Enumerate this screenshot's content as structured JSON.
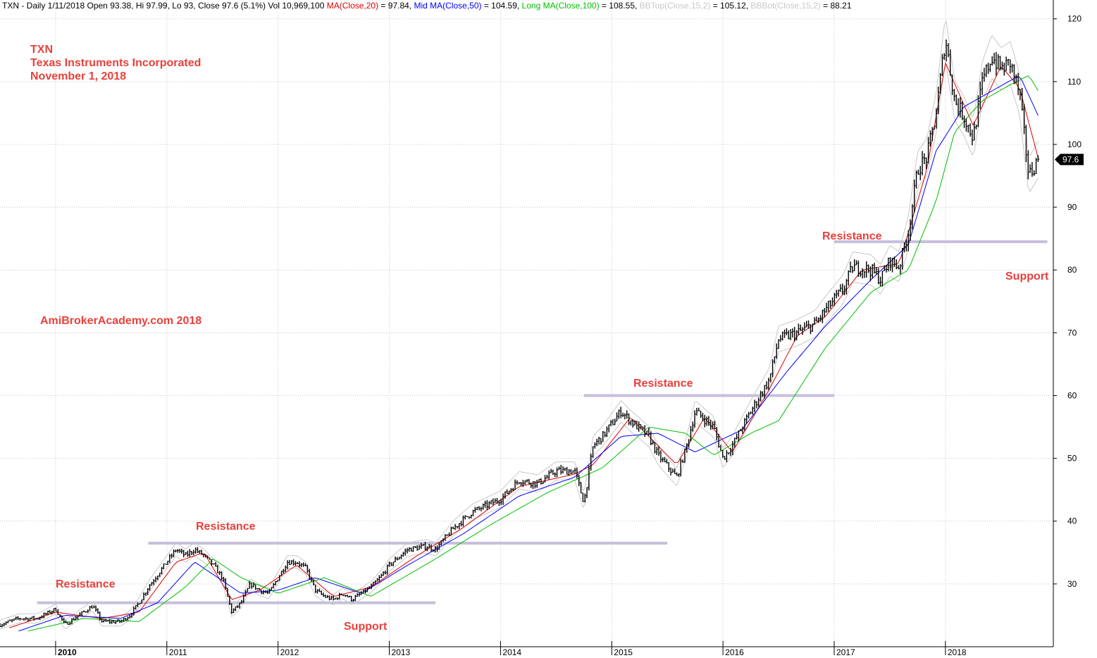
{
  "header": {
    "prefix": "TXN - Daily 1/11/2018 Open 93.38, Hi 97.99, Lo 93, Close 97.6 (5.1%) Vol 10,969,100 ",
    "ma20_label": "MA(Close,20)",
    "ma20_value": " = 97.84, ",
    "ma50_label": "Mid MA(Close,50)",
    "ma50_value": " = 104.59, ",
    "ma100_label": "Long MA(Close,100)",
    "ma100_value": " = 108.55, ",
    "bbtop_label": "BBTop(Close,15,2)",
    "bbtop_value": " = 105.12, ",
    "bbbot_label": "BBBot(Close,15,2)",
    "bbbot_value": " = 88.21"
  },
  "annotations": {
    "ticker": "TXN",
    "company": "Texas Instruments Incorporated",
    "date": "November 1, 2018",
    "watermark": "AmiBrokerAcademy.com  2018",
    "resistance": "Resistance",
    "support": "Support"
  },
  "colors": {
    "price_bars": "#000000",
    "ma20": "#e00000",
    "ma50": "#0000ff",
    "ma100": "#00c000",
    "bollinger": "#c8c8c8",
    "annotation": "#e8413c",
    "level_line": "#c7bfdb",
    "last_price_tag": "#000000"
  },
  "chart_data": {
    "type": "line",
    "title": "TXN - Daily",
    "x_range": [
      "2009-07",
      "2018-11"
    ],
    "ylim": [
      20,
      123
    ],
    "y_ticks": [
      30,
      40,
      50,
      60,
      70,
      80,
      90,
      100,
      110,
      120
    ],
    "x_ticks": [
      "2010",
      "2011",
      "2012",
      "2013",
      "2014",
      "2015",
      "2016",
      "2017",
      "2018"
    ],
    "grid": true,
    "y_axis_side": "right",
    "last_price": "97.6",
    "series": [
      {
        "name": "Close",
        "style": "ohlc-bars",
        "points": [
          [
            "2009-07",
            23.5
          ],
          [
            "2009-09",
            24.5
          ],
          [
            "2009-11",
            24.5
          ],
          [
            "2010-01",
            26.0
          ],
          [
            "2010-02",
            23.5
          ],
          [
            "2010-04",
            25.5
          ],
          [
            "2010-05",
            26.5
          ],
          [
            "2010-06",
            24.0
          ],
          [
            "2010-08",
            24.0
          ],
          [
            "2010-09",
            25.0
          ],
          [
            "2010-10",
            27.0
          ],
          [
            "2010-11",
            29.5
          ],
          [
            "2011-01",
            33.5
          ],
          [
            "2011-02",
            35.5
          ],
          [
            "2011-03",
            34.5
          ],
          [
            "2011-04",
            35.5
          ],
          [
            "2011-05",
            34.5
          ],
          [
            "2011-06",
            33.0
          ],
          [
            "2011-07",
            31.0
          ],
          [
            "2011-08",
            25.5
          ],
          [
            "2011-09",
            27.0
          ],
          [
            "2011-10",
            30.0
          ],
          [
            "2011-11",
            29.0
          ],
          [
            "2011-12",
            28.5
          ],
          [
            "2012-01",
            31.0
          ],
          [
            "2012-02",
            33.5
          ],
          [
            "2012-03",
            33.5
          ],
          [
            "2012-04",
            32.5
          ],
          [
            "2012-05",
            29.0
          ],
          [
            "2012-06",
            28.0
          ],
          [
            "2012-07",
            27.5
          ],
          [
            "2012-08",
            28.5
          ],
          [
            "2012-09",
            27.5
          ],
          [
            "2012-10",
            28.5
          ],
          [
            "2012-11",
            29.5
          ],
          [
            "2012-12",
            31.0
          ],
          [
            "2013-01",
            33.0
          ],
          [
            "2013-03",
            35.5
          ],
          [
            "2013-05",
            36.0
          ],
          [
            "2013-06",
            35.5
          ],
          [
            "2013-08",
            39.0
          ],
          [
            "2013-10",
            41.5
          ],
          [
            "2014-01",
            43.5
          ],
          [
            "2014-03",
            46.5
          ],
          [
            "2014-05",
            46.0
          ],
          [
            "2014-07",
            48.0
          ],
          [
            "2014-09",
            48.0
          ],
          [
            "2014-10",
            43.0
          ],
          [
            "2014-11",
            52.0
          ],
          [
            "2014-12",
            53.5
          ],
          [
            "2015-02",
            57.5
          ],
          [
            "2015-03",
            56.0
          ],
          [
            "2015-05",
            53.5
          ],
          [
            "2015-06",
            50.5
          ],
          [
            "2015-08",
            47.0
          ],
          [
            "2015-09",
            51.5
          ],
          [
            "2015-10",
            57.5
          ],
          [
            "2015-12",
            55.0
          ],
          [
            "2016-01",
            50.0
          ],
          [
            "2016-02",
            52.0
          ],
          [
            "2016-04",
            57.5
          ],
          [
            "2016-06",
            62.5
          ],
          [
            "2016-07",
            69.0
          ],
          [
            "2016-09",
            70.0
          ],
          [
            "2016-11",
            71.5
          ],
          [
            "2016-12",
            73.5
          ],
          [
            "2017-02",
            77.0
          ],
          [
            "2017-03",
            80.5
          ],
          [
            "2017-05",
            80.0
          ],
          [
            "2017-06",
            78.5
          ],
          [
            "2017-07",
            81.5
          ],
          [
            "2017-08",
            80.5
          ],
          [
            "2017-09",
            86.0
          ],
          [
            "2017-10",
            96.0
          ],
          [
            "2017-11",
            98.0
          ],
          [
            "2017-12",
            105.0
          ],
          [
            "2018-01",
            117.0
          ],
          [
            "2018-02",
            107.0
          ],
          [
            "2018-03",
            104.5
          ],
          [
            "2018-04",
            101.0
          ],
          [
            "2018-05",
            110.0
          ],
          [
            "2018-06",
            114.0
          ],
          [
            "2018-07",
            112.0
          ],
          [
            "2018-08",
            113.0
          ],
          [
            "2018-09",
            108.0
          ],
          [
            "2018-10",
            95.0
          ],
          [
            "2018-11",
            97.6
          ]
        ]
      },
      {
        "name": "MA(Close,20)",
        "points": [
          [
            "2009-08",
            23.0
          ],
          [
            "2010-01",
            25.5
          ],
          [
            "2010-06",
            24.5
          ],
          [
            "2010-10",
            25.5
          ],
          [
            "2011-02",
            33.5
          ],
          [
            "2011-05",
            35.0
          ],
          [
            "2011-08",
            27.5
          ],
          [
            "2011-11",
            29.0
          ],
          [
            "2012-03",
            33.0
          ],
          [
            "2012-07",
            28.0
          ],
          [
            "2012-11",
            29.5
          ],
          [
            "2013-04",
            34.5
          ],
          [
            "2013-09",
            39.0
          ],
          [
            "2014-03",
            45.5
          ],
          [
            "2014-09",
            47.5
          ],
          [
            "2014-11",
            49.0
          ],
          [
            "2015-03",
            56.5
          ],
          [
            "2015-08",
            49.0
          ],
          [
            "2015-11",
            56.5
          ],
          [
            "2016-02",
            51.0
          ],
          [
            "2016-06",
            61.0
          ],
          [
            "2016-09",
            69.5
          ],
          [
            "2016-12",
            72.5
          ],
          [
            "2017-04",
            80.0
          ],
          [
            "2017-08",
            81.0
          ],
          [
            "2017-11",
            96.0
          ],
          [
            "2018-01",
            113.0
          ],
          [
            "2018-04",
            103.0
          ],
          [
            "2018-07",
            112.5
          ],
          [
            "2018-09",
            109.0
          ],
          [
            "2018-11",
            97.84
          ]
        ]
      },
      {
        "name": "Mid MA(Close,50)",
        "points": [
          [
            "2009-09",
            22.5
          ],
          [
            "2010-02",
            25.0
          ],
          [
            "2010-08",
            24.5
          ],
          [
            "2010-12",
            27.0
          ],
          [
            "2011-04",
            33.5
          ],
          [
            "2011-09",
            28.5
          ],
          [
            "2012-01",
            29.0
          ],
          [
            "2012-05",
            31.0
          ],
          [
            "2012-10",
            28.5
          ],
          [
            "2013-03",
            33.0
          ],
          [
            "2013-09",
            38.0
          ],
          [
            "2014-03",
            44.0
          ],
          [
            "2014-09",
            47.0
          ],
          [
            "2015-02",
            53.5
          ],
          [
            "2015-06",
            54.0
          ],
          [
            "2015-10",
            51.0
          ],
          [
            "2016-03",
            54.5
          ],
          [
            "2016-08",
            64.0
          ],
          [
            "2016-12",
            71.0
          ],
          [
            "2017-05",
            78.5
          ],
          [
            "2017-09",
            84.0
          ],
          [
            "2017-12",
            99.0
          ],
          [
            "2018-03",
            106.0
          ],
          [
            "2018-06",
            108.5
          ],
          [
            "2018-09",
            111.0
          ],
          [
            "2018-11",
            104.59
          ]
        ]
      },
      {
        "name": "Long MA(Close,100)",
        "points": [
          [
            "2009-10",
            22.5
          ],
          [
            "2010-04",
            24.5
          ],
          [
            "2010-10",
            24.0
          ],
          [
            "2011-03",
            29.5
          ],
          [
            "2011-06",
            34.0
          ],
          [
            "2011-09",
            31.0
          ],
          [
            "2012-01",
            28.5
          ],
          [
            "2012-06",
            31.0
          ],
          [
            "2012-11",
            28.0
          ],
          [
            "2013-06",
            34.0
          ],
          [
            "2013-12",
            39.5
          ],
          [
            "2014-06",
            44.5
          ],
          [
            "2014-12",
            48.5
          ],
          [
            "2015-05",
            55.0
          ],
          [
            "2015-09",
            54.0
          ],
          [
            "2015-12",
            50.5
          ],
          [
            "2016-04",
            54.0
          ],
          [
            "2016-07",
            56.0
          ],
          [
            "2016-12",
            67.5
          ],
          [
            "2017-05",
            76.5
          ],
          [
            "2017-09",
            80.0
          ],
          [
            "2017-12",
            91.0
          ],
          [
            "2018-02",
            102.0
          ],
          [
            "2018-05",
            107.0
          ],
          [
            "2018-08",
            109.5
          ],
          [
            "2018-10",
            111.0
          ],
          [
            "2018-11",
            108.55
          ]
        ]
      }
    ],
    "levels": [
      {
        "label": "Resistance",
        "value": 27.0,
        "from": "2009-11",
        "to": "2013-06"
      },
      {
        "label": "Resistance",
        "value": 36.5,
        "from": "2010-11",
        "to": "2015-07"
      },
      {
        "label": "Resistance",
        "value": 60.0,
        "from": "2014-10",
        "to": "2017-01"
      },
      {
        "label": "Resistance",
        "value": 84.5,
        "from": "2017-01",
        "to": "2018-12"
      }
    ]
  }
}
